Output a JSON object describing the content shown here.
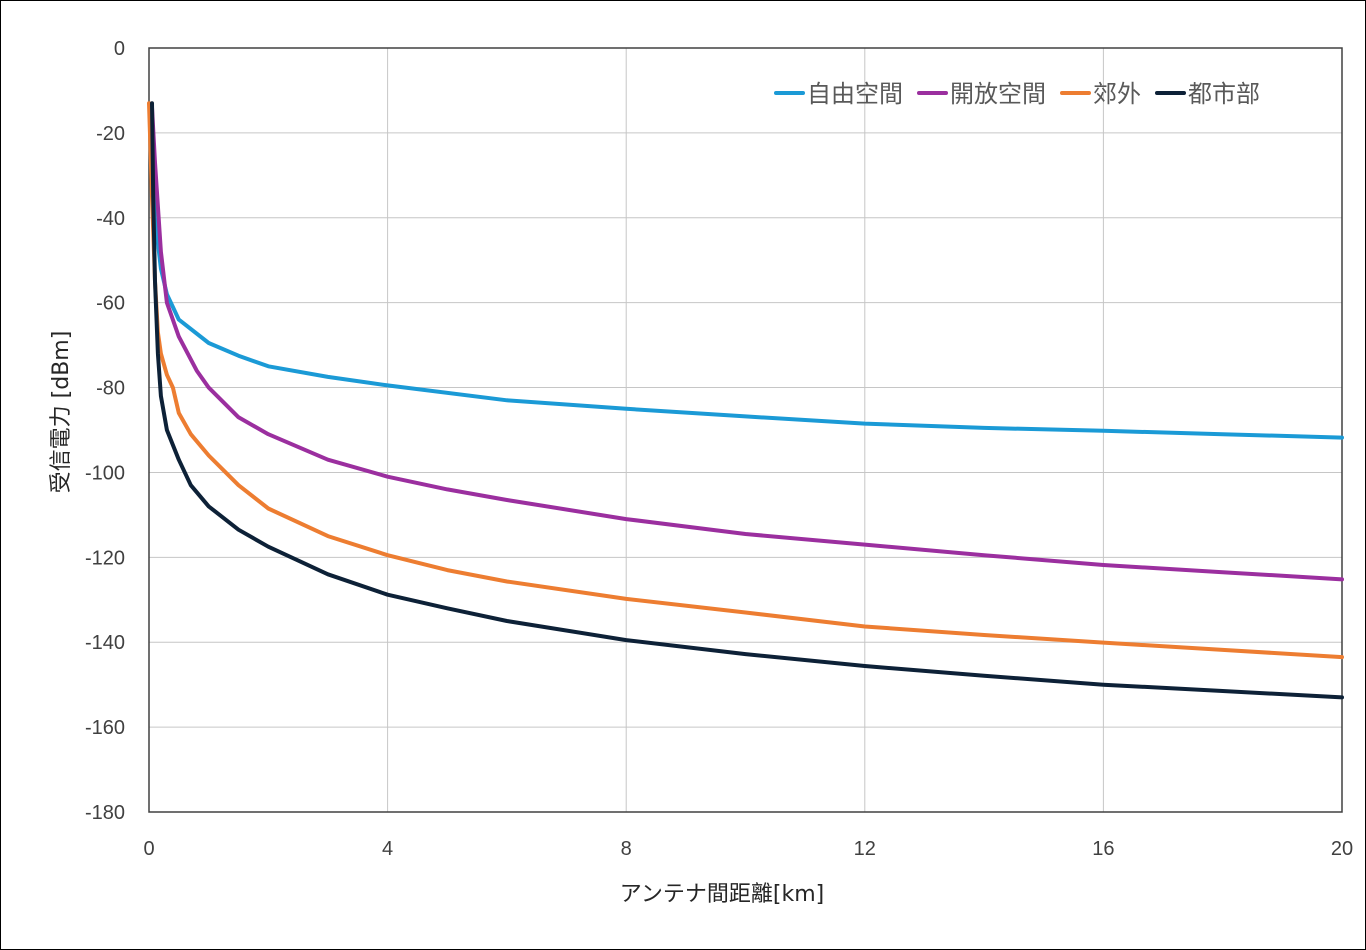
{
  "chart_data": {
    "type": "line",
    "xlabel": "アンテナ間距離[km]",
    "ylabel": "受信電力 [dBm]",
    "xlim": [
      0,
      20
    ],
    "ylim": [
      -180,
      0
    ],
    "xticks": [
      0,
      4,
      8,
      12,
      16,
      20
    ],
    "yticks": [
      0,
      -20,
      -40,
      -60,
      -80,
      -100,
      -120,
      -140,
      -160,
      -180
    ],
    "grid": true,
    "legend_position": "top-right",
    "series": [
      {
        "name": "自由空間",
        "color": "#1b9ad6",
        "x": [
          0.05,
          0.1,
          0.2,
          0.3,
          0.5,
          1,
          1.5,
          2,
          3,
          4,
          6,
          8,
          10,
          12,
          14,
          16,
          18,
          20
        ],
        "y": [
          -28,
          -40,
          -52,
          -58,
          -64,
          -69.5,
          -72.5,
          -75,
          -77.5,
          -79.5,
          -83,
          -85,
          -86.8,
          -88.5,
          -89.5,
          -90.2,
          -91,
          -91.8
        ]
      },
      {
        "name": "開放空間",
        "color": "#9b2f9f",
        "x": [
          0.05,
          0.1,
          0.2,
          0.3,
          0.5,
          0.8,
          1,
          1.5,
          2,
          3,
          4,
          5,
          6,
          8,
          10,
          12,
          14,
          16,
          18,
          20
        ],
        "y": [
          -14,
          -27,
          -48,
          -60,
          -68,
          -76,
          -80,
          -87,
          -91,
          -97,
          -101,
          -104,
          -106.5,
          -111,
          -114.5,
          -117,
          -119.5,
          -121.8,
          -123.5,
          -125.2
        ]
      },
      {
        "name": "郊外",
        "color": "#ed7d31",
        "x": [
          0,
          0.05,
          0.1,
          0.15,
          0.2,
          0.3,
          0.4,
          0.5,
          0.7,
          1,
          1.5,
          2,
          3,
          4,
          5,
          6,
          8,
          10,
          12,
          14,
          16,
          18,
          20
        ],
        "y": [
          -13,
          -35,
          -55,
          -67,
          -72,
          -77,
          -80,
          -86,
          -91,
          -96,
          -103,
          -108.5,
          -115,
          -119.5,
          -123,
          -125.7,
          -129.8,
          -133,
          -136.3,
          -138.3,
          -140.1,
          -141.8,
          -143.5
        ]
      },
      {
        "name": "都市部",
        "color": "#0d2137",
        "x": [
          0.05,
          0.07,
          0.1,
          0.15,
          0.2,
          0.3,
          0.5,
          0.7,
          1,
          1.5,
          2,
          3,
          4,
          5,
          6,
          8,
          10,
          12,
          14,
          16,
          18,
          20
        ],
        "y": [
          -13,
          -35,
          -55,
          -72,
          -82,
          -90,
          -97,
          -103,
          -108,
          -113.5,
          -117.5,
          -124,
          -128.8,
          -132,
          -135,
          -139.5,
          -142.8,
          -145.6,
          -147.9,
          -150,
          -151.5,
          -153
        ]
      }
    ]
  }
}
